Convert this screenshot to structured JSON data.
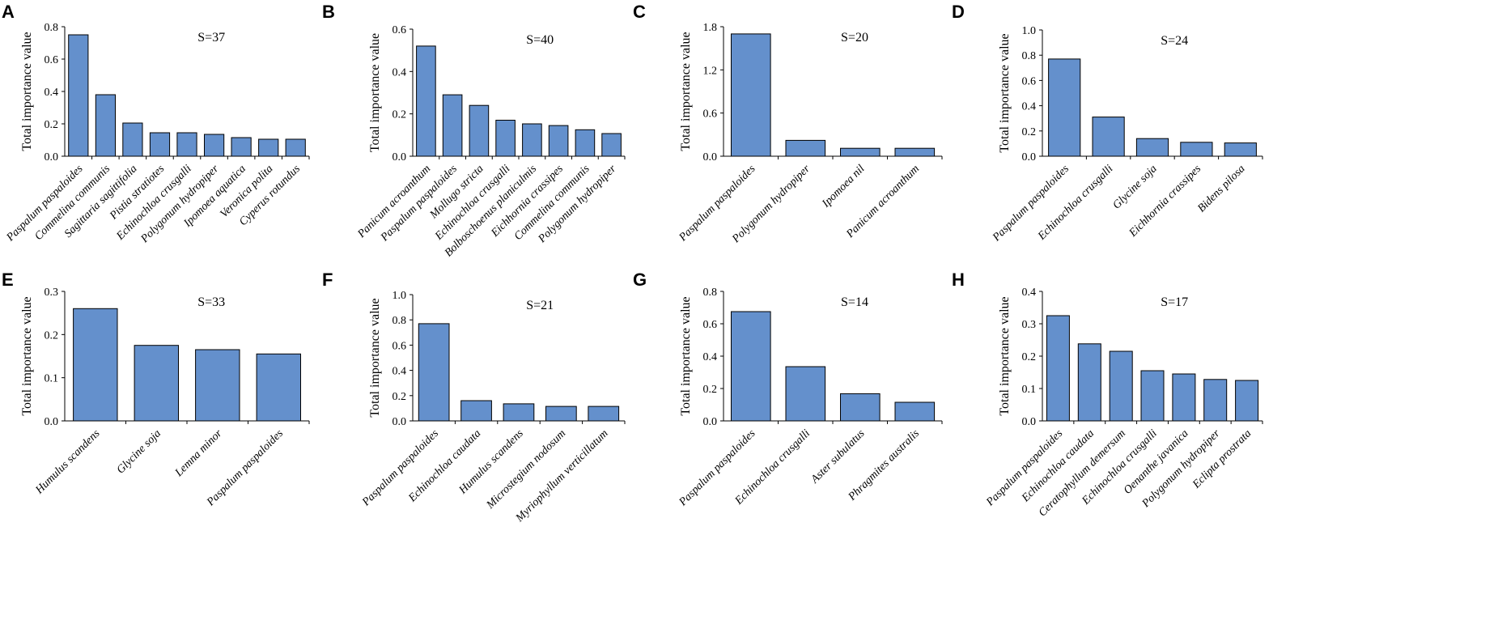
{
  "colors": {
    "bar": "#6490cc",
    "axis": "#000000"
  },
  "chart_data": [
    {
      "type": "bar",
      "panel": "A",
      "annotation": "S=37",
      "ylabel": "Total importance value",
      "ylim": [
        0,
        0.8
      ],
      "yticks": [
        "0.0",
        "0.2",
        "0.4",
        "0.6",
        "0.8"
      ],
      "categories": [
        "Paspalum paspaloides",
        "Commelina communis",
        "Sagittaria sagittifolia",
        "Pistia stratiotes",
        "Echinochloa crusgalli",
        "Polygonum hydropiper",
        "Ipomoea aquatica",
        "Veronica polita",
        "Cyperus rotundus"
      ],
      "values": [
        0.75,
        0.38,
        0.205,
        0.145,
        0.145,
        0.135,
        0.115,
        0.105,
        0.105
      ]
    },
    {
      "type": "bar",
      "panel": "B",
      "annotation": "S=40",
      "ylabel": "Total importance value",
      "ylim": [
        0,
        0.6
      ],
      "yticks": [
        "0.0",
        "0.2",
        "0.4",
        "0.6"
      ],
      "categories": [
        "Panicum acroanthum",
        "Paspalum paspaloides",
        "Mollugo stricta",
        "Echinochloa crusgalli",
        "Bolboschoenus planiculmis",
        "Eichhornia crassipes",
        "Commelina communis",
        "Polygonum hydropiper"
      ],
      "values": [
        0.52,
        0.29,
        0.24,
        0.17,
        0.153,
        0.145,
        0.125,
        0.107
      ]
    },
    {
      "type": "bar",
      "panel": "C",
      "annotation": "S=20",
      "ylabel": "Total importance value",
      "ylim": [
        0,
        1.8
      ],
      "yticks": [
        "0.0",
        "0.6",
        "1.2",
        "1.8"
      ],
      "categories": [
        "Paspalum paspaloides",
        "Polygonum hydropiper",
        "Ipomoea nil",
        "Panicum acroanthum"
      ],
      "values": [
        1.7,
        0.22,
        0.11,
        0.11
      ]
    },
    {
      "type": "bar",
      "panel": "D",
      "annotation": "S=24",
      "ylabel": "Total importance value",
      "ylim": [
        0,
        1.0
      ],
      "yticks": [
        "0.0",
        "0.2",
        "0.4",
        "0.6",
        "0.8",
        "1.0"
      ],
      "categories": [
        "Paspalum paspaloides",
        "Echinochloa crusgalli",
        "Glycine soja",
        "Eichhornia crassipes",
        "Bidens pilosa"
      ],
      "values": [
        0.77,
        0.31,
        0.14,
        0.11,
        0.105
      ]
    },
    {
      "type": "bar",
      "panel": "E",
      "annotation": "S=33",
      "ylabel": "Total importance value",
      "ylim": [
        0,
        0.3
      ],
      "yticks": [
        "0.0",
        "0.1",
        "0.2",
        "0.3"
      ],
      "categories": [
        "Humulus scandens",
        "Glycine soja",
        "Lemna minor",
        "Paspalum paspaloides"
      ],
      "values": [
        0.26,
        0.175,
        0.165,
        0.155
      ]
    },
    {
      "type": "bar",
      "panel": "F",
      "annotation": "S=21",
      "ylabel": "Total importance value",
      "ylim": [
        0,
        1.0
      ],
      "yticks": [
        "0.0",
        "0.2",
        "0.4",
        "0.6",
        "0.8",
        "1.0"
      ],
      "categories": [
        "Paspalum paspaloides",
        "Echinochloa caudata",
        "Humulus scandens",
        "Microstegium nodosum",
        "Myriophyllum verticillatum"
      ],
      "values": [
        0.77,
        0.16,
        0.135,
        0.115,
        0.115
      ]
    },
    {
      "type": "bar",
      "panel": "G",
      "annotation": "S=14",
      "ylabel": "Total importance value",
      "ylim": [
        0,
        0.8
      ],
      "yticks": [
        "0.0",
        "0.2",
        "0.4",
        "0.6",
        "0.8"
      ],
      "categories": [
        "Paspalum paspaloides",
        "Echinochloa crusgalli",
        "Aster subulatus",
        "Phragmites australis"
      ],
      "values": [
        0.675,
        0.335,
        0.168,
        0.115
      ]
    },
    {
      "type": "bar",
      "panel": "H",
      "annotation": "S=17",
      "ylabel": "Total importance value",
      "ylim": [
        0,
        0.4
      ],
      "yticks": [
        "0.0",
        "0.1",
        "0.2",
        "0.3",
        "0.4"
      ],
      "categories": [
        "Paspalum paspaloides",
        "Echinochloa caudata",
        "Ceratophyllum demersum",
        "Echinochloa crusgalli",
        "Oenanthe javanica",
        "Polygonum hydropiper",
        "Eclipta prostrata"
      ],
      "values": [
        0.325,
        0.238,
        0.215,
        0.155,
        0.145,
        0.128,
        0.125
      ]
    }
  ]
}
